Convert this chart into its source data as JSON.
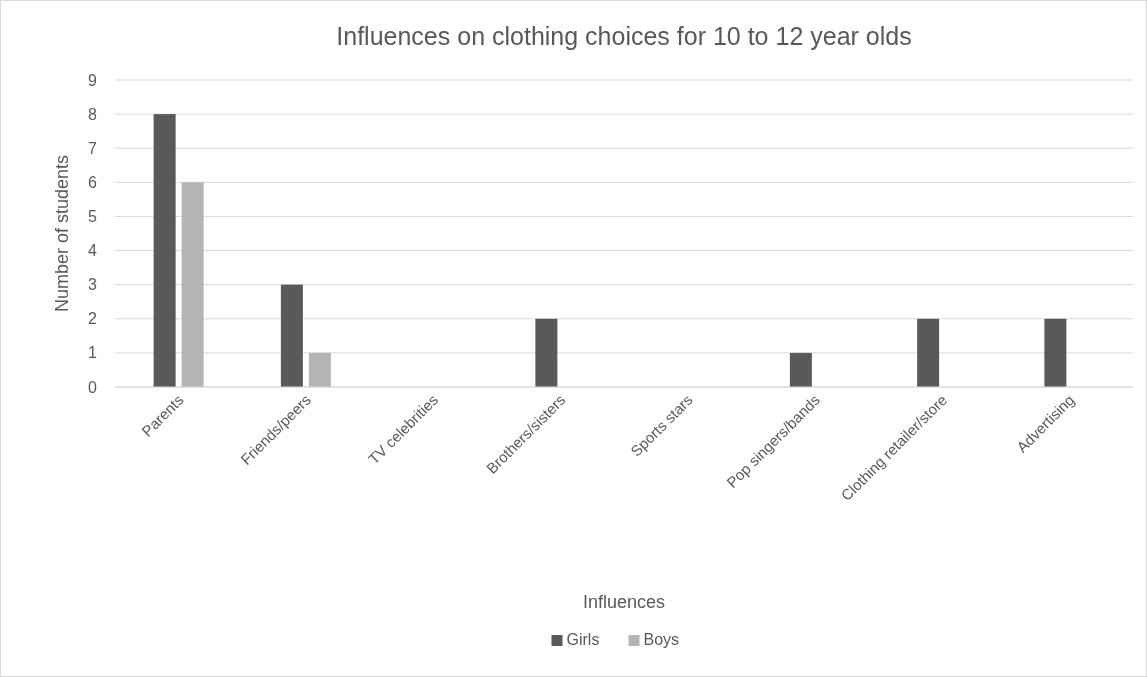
{
  "chart_data": {
    "type": "bar",
    "title": "Influences on clothing choices for 10  to 12 year olds",
    "xlabel": "Influences",
    "ylabel": "Number of students",
    "categories": [
      "Parents",
      "Friends/peers",
      "TV celebrities",
      "Brothers/sisters",
      "Sports stars",
      "Pop singers/bands",
      "Clothing retailer/store",
      "Advertising"
    ],
    "series": [
      {
        "name": "Girls",
        "color": "#595959",
        "values": [
          8,
          3,
          0,
          2,
          0,
          1,
          2,
          2
        ]
      },
      {
        "name": "Boys",
        "color": "#b4b4b4",
        "values": [
          6,
          1,
          0,
          0,
          0,
          0,
          0,
          0
        ]
      }
    ],
    "ylim": [
      0,
      9
    ],
    "yticks": [
      0,
      1,
      2,
      3,
      4,
      5,
      6,
      7,
      8,
      9
    ],
    "grid": "y",
    "legend": "bottom"
  }
}
